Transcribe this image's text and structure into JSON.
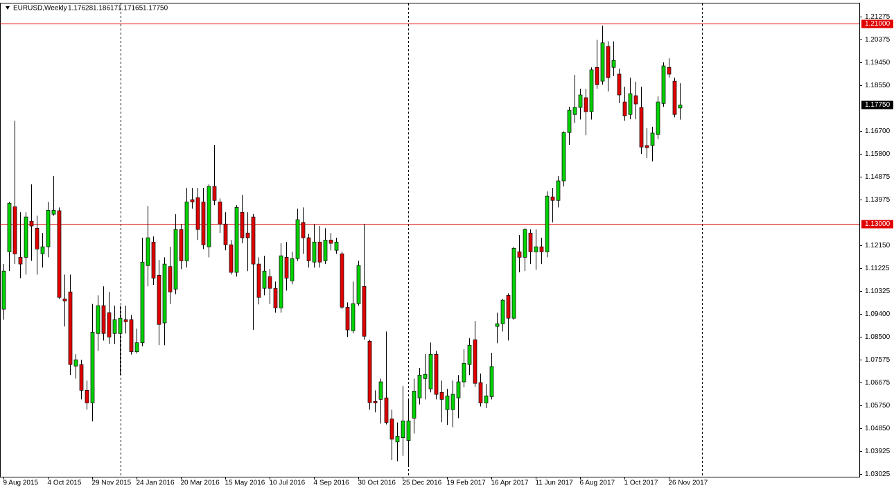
{
  "chart_data": {
    "type": "candlestick",
    "title": "EURUSD,Weekly",
    "ohlc_labels": [
      "1.17628",
      "1.18617",
      "1.17165",
      "1.17750"
    ],
    "bull_color": "#00d200",
    "bear_color": "#e00000",
    "categories": [
      "9 Aug 2015",
      null,
      null,
      null,
      null,
      null,
      null,
      null,
      "4 Oct 2015",
      null,
      null,
      null,
      null,
      null,
      null,
      null,
      "29 Nov 2015",
      null,
      null,
      null,
      null,
      null,
      null,
      null,
      "24 Jan 2016",
      null,
      null,
      null,
      null,
      null,
      null,
      null,
      "20 Mar 2016",
      null,
      null,
      null,
      null,
      null,
      null,
      null,
      "15 May 2016",
      null,
      null,
      null,
      null,
      null,
      null,
      null,
      "10 Jul 2016",
      null,
      null,
      null,
      null,
      null,
      null,
      null,
      "4 Sep 2016",
      null,
      null,
      null,
      null,
      null,
      null,
      null,
      "30 Oct 2016",
      null,
      null,
      null,
      null,
      null,
      null,
      null,
      "25 Dec 2016",
      null,
      null,
      null,
      null,
      null,
      null,
      null,
      "19 Feb 2017",
      null,
      null,
      null,
      null,
      null,
      null,
      null,
      "16 Apr 2017",
      null,
      null,
      null,
      null,
      null,
      null,
      null,
      "11 Jun 2017",
      null,
      null,
      null,
      null,
      null,
      null,
      null,
      "6 Aug 2017",
      null,
      null,
      null,
      null,
      null,
      null,
      null,
      "1 Oct 2017",
      null,
      null,
      null,
      null,
      null,
      null,
      null,
      "26 Nov 2017",
      null,
      null
    ],
    "open": [
      1.096,
      1.1189,
      1.1369,
      1.1167,
      1.1167,
      1.1311,
      1.1283,
      1.1181,
      1.1209,
      1.1339,
      1.1353,
      1.1001,
      1.1029,
      1.0733,
      1.0739,
      1.0636,
      1.0586,
      1.0863,
      1.0974,
      1.0946,
      1.0863,
      1.0863,
      1.0918,
      1.0918,
      1.079,
      1.0826,
      1.1134,
      1.1228,
      1.1095,
      1.0905,
      1.113,
      1.104,
      1.1278,
      1.1153,
      1.1397,
      1.1405,
      1.1388,
      1.1209,
      1.145,
      1.1388,
      1.13,
      1.1217,
      1.1107,
      1.1347,
      1.1264,
      1.1328,
      1.114,
      1.1043,
      1.109,
      1.1043,
      1.0965,
      1.1167,
      1.1073,
      1.1162,
      1.1306,
      1.1245,
      1.1148,
      1.1228,
      1.1153,
      1.1236,
      1.1195,
      1.1181,
      1.0968,
      1.0874,
      1.0982,
      1.1051,
      1.0832,
      1.0592,
      1.06,
      1.0606,
      1.0522,
      1.043,
      1.0447,
      1.0436,
      1.0525,
      1.0606,
      1.0683,
      1.0642,
      1.078,
      1.0628,
      1.0559,
      1.0559,
      1.0606,
      1.067,
      1.0739,
      1.0838,
      1.0667,
      1.0586,
      1.0611,
      1.0891,
      1.0902,
      1.1015,
      1.0924,
      1.1189,
      1.1167,
      1.1264,
      1.1189,
      1.1209,
      1.1189,
      1.1408,
      1.1394,
      1.1472,
      1.1665,
      1.1737,
      1.1765,
      1.1804,
      1.1748,
      1.1925,
      1.187,
      1.2009,
      1.1925,
      1.1898,
      1.1787,
      1.1737,
      1.1812,
      1.1765,
      1.1613,
      1.1613,
      1.1657,
      1.1781,
      1.1925,
      1.187,
      1.17628
    ],
    "high": [
      1.114,
      1.1388,
      1.1712,
      1.1347,
      1.1347,
      1.1458,
      1.1333,
      1.1264,
      1.1388,
      1.1491,
      1.1366,
      1.1098,
      1.1098,
      1.078,
      1.0758,
      1.0675,
      1.0981,
      1.1015,
      1.1051,
      1.1029,
      1.0974,
      1.0974,
      1.0974,
      1.0937,
      1.0882,
      1.1245,
      1.1372,
      1.125,
      1.1156,
      1.1167,
      1.1209,
      1.1339,
      1.13,
      1.1444,
      1.1444,
      1.1444,
      1.1444,
      1.1458,
      1.1616,
      1.1402,
      1.1347,
      1.1236,
      1.1375,
      1.1416,
      1.1347,
      1.134,
      1.1167,
      1.1173,
      1.112,
      1.107,
      1.1223,
      1.1228,
      1.1189,
      1.1361,
      1.1366,
      1.1261,
      1.13,
      1.1292,
      1.1283,
      1.1264,
      1.1245,
      1.119,
      1.0987,
      1.107,
      1.1153,
      1.13,
      1.0838,
      1.0636,
      1.0683,
      1.0871,
      1.0559,
      1.0508,
      1.0653,
      1.06,
      1.0683,
      1.0725,
      1.0781,
      1.0827,
      1.0794,
      1.0675,
      1.0642,
      1.0675,
      1.0697,
      1.08,
      1.0844,
      1.0913,
      1.0703,
      1.0661,
      1.0786,
      1.0946,
      1.1001,
      1.1023,
      1.1209,
      1.1256,
      1.1283,
      1.1278,
      1.1278,
      1.1245,
      1.143,
      1.1444,
      1.1491,
      1.167,
      1.1768,
      1.1895,
      1.184,
      1.184,
      1.1925,
      1.2035,
      1.2092,
      1.2029,
      1.2029,
      1.192,
      1.1848,
      1.1884,
      1.1868,
      1.1848,
      1.1682,
      1.1688,
      1.1809,
      1.1945,
      1.1961,
      1.1884,
      1.18617
    ],
    "low": [
      1.0918,
      1.1112,
      1.114,
      1.1084,
      1.1098,
      1.1153,
      1.1098,
      1.1126,
      1.1167,
      1.1333,
      1.1001,
      1.0891,
      1.0697,
      1.0683,
      1.06,
      1.0559,
      1.0512,
      1.0794,
      1.0835,
      1.0821,
      1.0821,
      1.0697,
      1.0863,
      1.0779,
      1.0783,
      1.0812,
      1.1051,
      1.1057,
      1.0816,
      1.0816,
      1.0981,
      1.102,
      1.112,
      1.1126,
      1.1361,
      1.1236,
      1.12,
      1.1167,
      1.1375,
      1.1264,
      1.1195,
      1.1098,
      1.109,
      1.1223,
      1.1112,
      1.0878,
      1.0979,
      1.1015,
      1.098,
      1.0946,
      1.0946,
      1.1034,
      1.1059,
      1.1153,
      1.1181,
      1.1126,
      1.1126,
      1.1126,
      1.114,
      1.1195,
      1.1181,
      1.096,
      1.0849,
      1.0863,
      1.0974,
      1.0838,
      1.0559,
      1.0548,
      1.0503,
      1.05,
      1.0358,
      1.0353,
      1.0375,
      1.0332,
      1.0464,
      1.058,
      1.06,
      1.0628,
      1.06,
      1.0509,
      1.0498,
      1.0489,
      1.0525,
      1.0648,
      1.0697,
      1.065,
      1.0572,
      1.0565,
      1.06,
      1.0824,
      1.0871,
      1.0835,
      1.0918,
      1.1107,
      1.1112,
      1.114,
      1.1117,
      1.114,
      1.1167,
      1.1306,
      1.1366,
      1.145,
      1.1616,
      1.1703,
      1.1717,
      1.1654,
      1.1717,
      1.184,
      1.1856,
      1.1829,
      1.189,
      1.1782,
      1.1712,
      1.1718,
      1.1718,
      1.158,
      1.1563,
      1.155,
      1.1638,
      1.1768,
      1.1884,
      1.1726,
      1.17165
    ],
    "close": [
      1.1112,
      1.1383,
      1.1181,
      1.114,
      1.1328,
      1.1292,
      1.12,
      1.1209,
      1.1355,
      1.1355,
      1.1007,
      1.0993,
      1.0739,
      1.0758,
      1.0636,
      1.0586,
      1.0868,
      1.0974,
      1.0863,
      1.0849,
      1.0918,
      1.0924,
      1.091,
      1.079,
      1.0826,
      1.1148,
      1.1245,
      1.1084,
      1.0899,
      1.114,
      1.1029,
      1.1278,
      1.1153,
      1.1388,
      1.1388,
      1.1278,
      1.1217,
      1.145,
      1.1394,
      1.13,
      1.1217,
      1.1107,
      1.1366,
      1.1245,
      1.1245,
      1.114,
      1.1007,
      1.1112,
      1.1043,
      1.0965,
      1.1173,
      1.1084,
      1.1162,
      1.1317,
      1.1245,
      1.1153,
      1.1228,
      1.1148,
      1.1236,
      1.1223,
      1.1228,
      1.0968,
      1.0877,
      1.0982,
      1.1134,
      1.0852,
      1.0587,
      1.0586,
      1.067,
      1.0508,
      1.0441,
      1.0453,
      1.0514,
      1.0514,
      1.0633,
      1.0697,
      1.07,
      1.078,
      1.062,
      1.06,
      1.0614,
      1.062,
      1.067,
      1.0744,
      1.0816,
      1.0664,
      1.0586,
      1.0614,
      1.0731,
      1.0902,
      1.0996,
      1.0924,
      1.1203,
      1.1167,
      1.1278,
      1.1189,
      1.1209,
      1.1189,
      1.1411,
      1.1394,
      1.1472,
      1.1665,
      1.1754,
      1.1765,
      1.1815,
      1.1748,
      1.1915,
      1.1856,
      1.2023,
      1.1884,
      1.1953,
      1.1815,
      1.1732,
      1.182,
      1.1779,
      1.1607,
      1.1605,
      1.1663,
      1.1787,
      1.1931,
      1.1898,
      1.1737,
      1.1775
    ],
    "ylim": [
      1.02912,
      1.21939
    ],
    "yticks": [
      1.21275,
      1.20375,
      {
        "value": 1.1945,
        "label": "1.19450"
      },
      {
        "value": 1.1855,
        "label": "1.18550"
      },
      {
        "value": 1.167,
        "label": "1.16700"
      },
      {
        "value": 1.158,
        "label": "1.15800"
      },
      1.14875,
      1.13975,
      {
        "value": 1.1215,
        "label": "1.12150"
      },
      1.11225,
      1.10325,
      {
        "value": 1.094,
        "label": "1.09400"
      },
      {
        "value": 1.085,
        "label": "1.08500"
      },
      1.07575,
      1.06675,
      {
        "value": 1.0575,
        "label": "1.05750"
      },
      {
        "value": 1.0485,
        "label": "1.04850"
      },
      1.03925,
      1.03025
    ],
    "hlines": [
      {
        "value": 1.21,
        "label": "1.21000",
        "color": "#e00000"
      },
      {
        "value": 1.13,
        "label": "1.13000",
        "color": "#e00000"
      }
    ],
    "current_price": {
      "value": 1.1775,
      "label": "1.17750"
    },
    "grid": false
  }
}
